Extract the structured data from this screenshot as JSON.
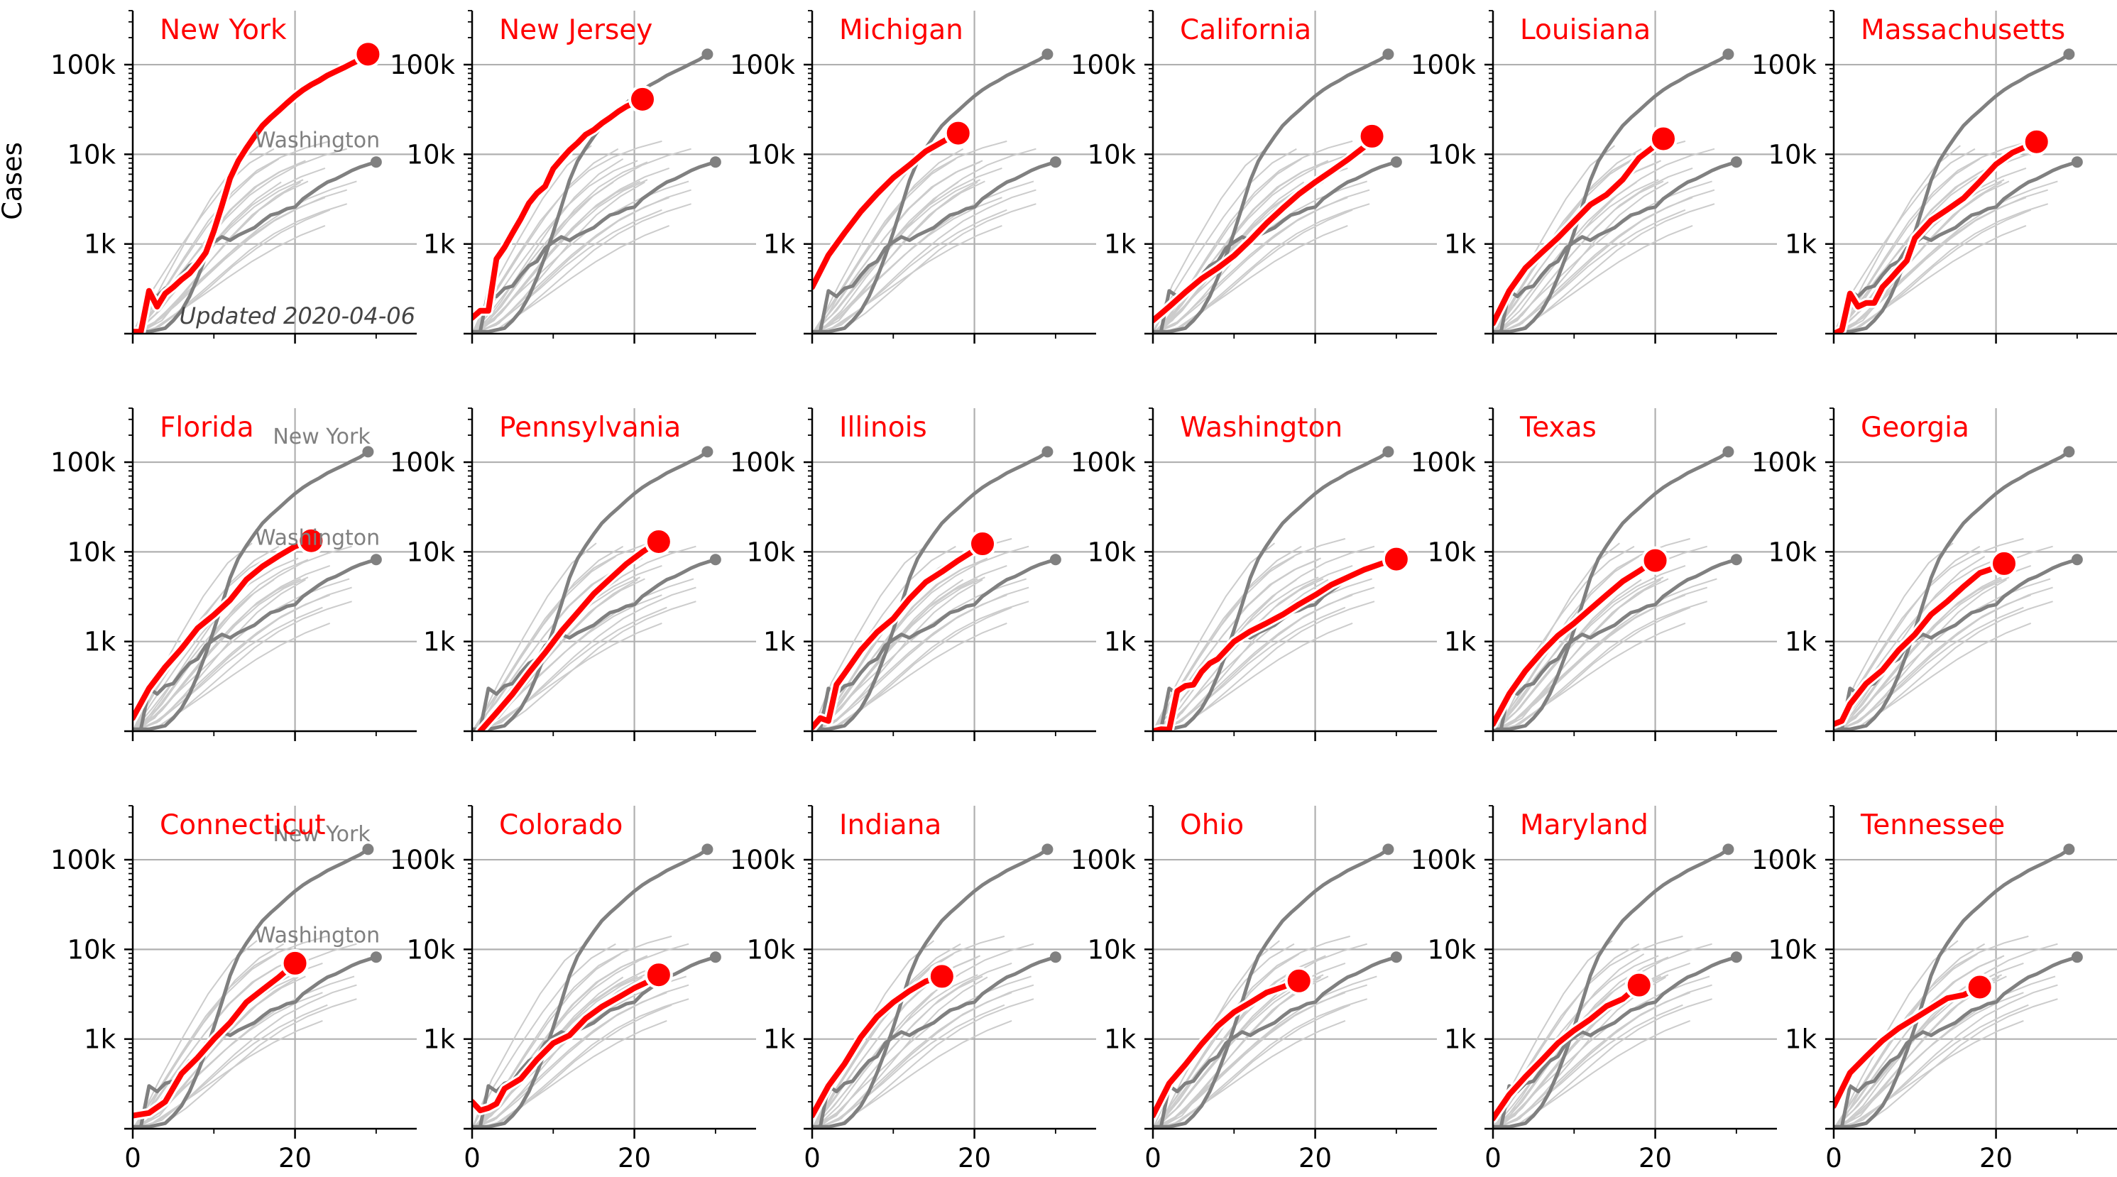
{
  "figure": {
    "ylabel": "Cases",
    "updated_note": "Updated 2020-04-06",
    "x_ticks": [
      "0",
      "20"
    ],
    "y_ticks": [
      "1k",
      "10k",
      "100k"
    ],
    "ref_labels": {
      "ny": "New York",
      "wa": "Washington"
    }
  },
  "colors": {
    "highlight": "#ff0000",
    "reference": "#808080",
    "background_lines": "#cccccc",
    "grid": "#b0b0b0",
    "axis": "#000000"
  },
  "chart_data": {
    "type": "line",
    "xlim": [
      0,
      35
    ],
    "ylim": [
      100,
      400000
    ],
    "yscale": "log",
    "xlabel": "",
    "ylabel": "Cases",
    "grid": true,
    "reference_series": [
      {
        "name": "New York",
        "x": [
          0,
          1,
          2,
          3,
          4,
          5,
          6,
          7,
          8,
          9,
          10,
          11,
          12,
          13,
          14,
          15,
          16,
          17,
          18,
          19,
          20,
          21,
          22,
          23,
          24,
          25,
          26,
          27,
          28,
          29
        ],
        "y": [
          105,
          105,
          105,
          110,
          115,
          140,
          180,
          260,
          420,
          730,
          1350,
          2600,
          5100,
          8400,
          11700,
          15800,
          20900,
          25600,
          30800,
          37200,
          44600,
          52300,
          59600,
          66700,
          75800,
          83700,
          92400,
          102900,
          113700,
          130700
        ]
      },
      {
        "name": "Washington",
        "x": [
          0,
          1,
          2,
          3,
          4,
          5,
          6,
          7,
          8,
          9,
          10,
          11,
          12,
          13,
          14,
          15,
          16,
          17,
          18,
          19,
          20,
          21,
          22,
          23,
          24,
          25,
          26,
          27,
          28,
          29,
          30
        ],
        "y": [
          100,
          105,
          300,
          260,
          320,
          340,
          450,
          570,
          640,
          900,
          1050,
          1200,
          1100,
          1250,
          1380,
          1520,
          1800,
          2100,
          2220,
          2470,
          2580,
          3200,
          3700,
          4300,
          4900,
          5300,
          5900,
          6600,
          7200,
          7700,
          8200
        ]
      }
    ],
    "background_series": [
      {
        "x": [
          0,
          3,
          6,
          9,
          12,
          15,
          18,
          21,
          24,
          27
        ],
        "y": [
          100,
          180,
          420,
          900,
          1900,
          3500,
          5400,
          7600,
          9600,
          11500
        ]
      },
      {
        "x": [
          0,
          3,
          6,
          9,
          12,
          15,
          18,
          21,
          24
        ],
        "y": [
          100,
          260,
          700,
          1800,
          3800,
          6600,
          9300,
          11800,
          14000
        ]
      },
      {
        "x": [
          0,
          3,
          6,
          9,
          12,
          15,
          18,
          21
        ],
        "y": [
          100,
          130,
          250,
          520,
          1100,
          2100,
          3400,
          4900
        ]
      },
      {
        "x": [
          0,
          3,
          6,
          9,
          12,
          15,
          18,
          21,
          24,
          27
        ],
        "y": [
          100,
          150,
          280,
          500,
          900,
          1500,
          2300,
          3200,
          4100,
          5000
        ]
      },
      {
        "x": [
          0,
          3,
          6,
          9,
          12,
          15,
          18,
          21
        ],
        "y": [
          100,
          200,
          480,
          1100,
          2400,
          4300,
          6300,
          8200
        ]
      },
      {
        "x": [
          0,
          3,
          6,
          9,
          12,
          15,
          18
        ],
        "y": [
          100,
          300,
          800,
          2000,
          4500,
          8000,
          11500
        ]
      },
      {
        "x": [
          0,
          3,
          6,
          9,
          12,
          15,
          18,
          21,
          24
        ],
        "y": [
          100,
          120,
          190,
          320,
          560,
          900,
          1350,
          1850,
          2400
        ]
      },
      {
        "x": [
          0,
          3,
          6,
          9,
          12,
          15,
          18,
          21,
          24
        ],
        "y": [
          100,
          160,
          350,
          750,
          1500,
          2700,
          4100,
          5600,
          7000
        ]
      },
      {
        "x": [
          0,
          3,
          6,
          9,
          12,
          15,
          18,
          21
        ],
        "y": [
          100,
          140,
          300,
          650,
          1300,
          2400,
          3700,
          5000
        ]
      },
      {
        "x": [
          0,
          3,
          6,
          9,
          12,
          15,
          18
        ],
        "y": [
          100,
          230,
          600,
          1500,
          3300,
          6000,
          8900
        ]
      },
      {
        "x": [
          0,
          3,
          6,
          9,
          12,
          15,
          18,
          21,
          24,
          27
        ],
        "y": [
          100,
          110,
          170,
          290,
          500,
          850,
          1300,
          1800,
          2300,
          2800
        ]
      },
      {
        "x": [
          0,
          3,
          6,
          9,
          12,
          15,
          18,
          21
        ],
        "y": [
          100,
          210,
          520,
          1200,
          2500,
          4400,
          6500,
          8500
        ]
      },
      {
        "x": [
          0,
          3,
          6,
          9,
          12,
          15,
          18,
          21,
          24
        ],
        "y": [
          100,
          135,
          240,
          430,
          760,
          1250,
          1900,
          2600,
          3300
        ]
      },
      {
        "x": [
          0,
          3,
          6,
          9,
          12,
          15
        ],
        "y": [
          100,
          350,
          1100,
          3200,
          7500,
          12500
        ]
      },
      {
        "x": [
          0,
          3,
          6,
          9,
          12,
          15,
          18,
          21
        ],
        "y": [
          100,
          170,
          360,
          760,
          1500,
          2600,
          3900,
          5200
        ]
      },
      {
        "x": [
          0,
          3,
          6,
          9,
          12,
          15,
          18,
          21,
          24,
          27
        ],
        "y": [
          100,
          125,
          210,
          380,
          680,
          1150,
          1800,
          2500,
          3300,
          4000
        ]
      },
      {
        "x": [
          0,
          3,
          6,
          9,
          12,
          15,
          18
        ],
        "y": [
          100,
          180,
          400,
          880,
          1800,
          3200,
          4900
        ]
      },
      {
        "x": [
          0,
          3,
          6,
          9,
          12,
          15,
          18,
          21,
          24
        ],
        "y": [
          100,
          115,
          175,
          270,
          420,
          640,
          920,
          1250,
          1600
        ]
      }
    ],
    "panels": [
      {
        "name": "New York",
        "show_ylabel": true,
        "show_updated": true,
        "labels": [
          "wa"
        ],
        "x": [
          0,
          1,
          2,
          3,
          4,
          5,
          6,
          7,
          8,
          9,
          10,
          11,
          12,
          13,
          14,
          15,
          16,
          17,
          18,
          19,
          20,
          21,
          22,
          23,
          24,
          25,
          26,
          27,
          28,
          29
        ],
        "y": [
          105,
          105,
          300,
          200,
          280,
          330,
          400,
          470,
          600,
          800,
          1400,
          2700,
          5400,
          8400,
          11700,
          15800,
          20900,
          25600,
          30800,
          37200,
          44600,
          52300,
          59600,
          66700,
          75800,
          83700,
          92400,
          102900,
          113700,
          130700
        ]
      },
      {
        "name": "New Jersey",
        "x": [
          0,
          1,
          2,
          3,
          4,
          5,
          6,
          7,
          8,
          9,
          10,
          11,
          12,
          13,
          14,
          15,
          16,
          17,
          18,
          19,
          20,
          21
        ],
        "y": [
          150,
          180,
          180,
          680,
          920,
          1330,
          1910,
          2840,
          3680,
          4400,
          6900,
          8800,
          11100,
          13400,
          16600,
          18700,
          22200,
          25600,
          29900,
          34100,
          37500,
          41100
        ]
      },
      {
        "name": "Michigan",
        "x": [
          0,
          2,
          4,
          6,
          8,
          10,
          12,
          14,
          16,
          18
        ],
        "y": [
          330,
          750,
          1330,
          2300,
          3630,
          5490,
          7600,
          10800,
          13700,
          17200
        ]
      },
      {
        "name": "California",
        "x": [
          0,
          2,
          4,
          6,
          8,
          10,
          12,
          14,
          16,
          18,
          20,
          22,
          24,
          26,
          27
        ],
        "y": [
          140,
          200,
          290,
          410,
          540,
          740,
          1100,
          1700,
          2500,
          3600,
          4900,
          6500,
          8700,
          12000,
          15900
        ]
      },
      {
        "name": "Louisiana",
        "x": [
          0,
          2,
          4,
          6,
          8,
          10,
          12,
          14,
          16,
          18,
          20,
          21
        ],
        "y": [
          130,
          300,
          540,
          800,
          1170,
          1790,
          2740,
          3540,
          5240,
          9100,
          12500,
          14900
        ]
      },
      {
        "name": "Massachusetts",
        "x": [
          0,
          1,
          2,
          3,
          4,
          5,
          6,
          7,
          8,
          9,
          10,
          12,
          14,
          16,
          18,
          20,
          22,
          24,
          25
        ],
        "y": [
          100,
          110,
          280,
          200,
          220,
          220,
          330,
          410,
          520,
          650,
          1160,
          1830,
          2420,
          3240,
          4950,
          7740,
          10400,
          12500,
          13800
        ]
      },
      {
        "name": "Florida",
        "labels": [
          "ny",
          "wa"
        ],
        "x": [
          0,
          2,
          4,
          6,
          8,
          10,
          12,
          14,
          16,
          18,
          20,
          22
        ],
        "y": [
          140,
          300,
          520,
          830,
          1410,
          1980,
          2900,
          4900,
          6900,
          9000,
          11500,
          13300
        ]
      },
      {
        "name": "Pennsylvania",
        "x": [
          1,
          3,
          5,
          7,
          9,
          11,
          13,
          15,
          17,
          19,
          21,
          23
        ],
        "y": [
          100,
          160,
          260,
          450,
          750,
          1300,
          2100,
          3400,
          5000,
          7300,
          10000,
          13000
        ]
      },
      {
        "name": "Illinois",
        "x": [
          0,
          1,
          2,
          3,
          4,
          6,
          8,
          10,
          12,
          14,
          16,
          18,
          20,
          21
        ],
        "y": [
          110,
          140,
          130,
          330,
          440,
          800,
          1270,
          1800,
          3000,
          4600,
          6000,
          8000,
          10400,
          12300
        ]
      },
      {
        "name": "Washington",
        "x": [
          0,
          1,
          2,
          3,
          4,
          5,
          6,
          7,
          8,
          10,
          12,
          14,
          16,
          18,
          20,
          22,
          24,
          26,
          28,
          30
        ],
        "y": [
          100,
          105,
          104,
          280,
          320,
          330,
          460,
          570,
          640,
          1000,
          1300,
          1600,
          2000,
          2600,
          3300,
          4300,
          5200,
          6300,
          7300,
          8300
        ]
      },
      {
        "name": "Texas",
        "x": [
          0,
          2,
          4,
          6,
          8,
          10,
          12,
          14,
          16,
          18,
          20
        ],
        "y": [
          120,
          260,
          470,
          760,
          1160,
          1600,
          2300,
          3300,
          4700,
          6100,
          8000
        ]
      },
      {
        "name": "Georgia",
        "x": [
          0,
          1,
          2,
          4,
          6,
          8,
          10,
          12,
          14,
          16,
          18,
          20,
          21
        ],
        "y": [
          120,
          130,
          200,
          340,
          480,
          800,
          1200,
          2000,
          2800,
          4100,
          5800,
          6700,
          7400
        ]
      },
      {
        "name": "Connecticut",
        "labels": [
          "ny",
          "wa"
        ],
        "x": [
          0,
          2,
          4,
          6,
          8,
          10,
          12,
          14,
          16,
          18,
          20
        ],
        "y": [
          140,
          150,
          200,
          410,
          620,
          1000,
          1520,
          2570,
          3560,
          4900,
          7000
        ]
      },
      {
        "name": "Colorado",
        "x": [
          0,
          1,
          2,
          3,
          4,
          6,
          8,
          10,
          12,
          14,
          16,
          18,
          20,
          22,
          23
        ],
        "y": [
          200,
          160,
          170,
          190,
          280,
          360,
          590,
          900,
          1100,
          1700,
          2300,
          2900,
          3700,
          4500,
          5200
        ]
      },
      {
        "name": "Indiana",
        "x": [
          0,
          2,
          4,
          6,
          8,
          10,
          12,
          14,
          16
        ],
        "y": [
          140,
          300,
          530,
          1050,
          1780,
          2570,
          3440,
          4400,
          5000
        ]
      },
      {
        "name": "Ohio",
        "x": [
          0,
          2,
          4,
          6,
          8,
          10,
          12,
          14,
          16,
          18
        ],
        "y": [
          140,
          320,
          520,
          880,
          1400,
          2000,
          2550,
          3300,
          3800,
          4450
        ]
      },
      {
        "name": "Maryland",
        "x": [
          0,
          2,
          4,
          6,
          8,
          10,
          12,
          14,
          16,
          18
        ],
        "y": [
          130,
          240,
          380,
          580,
          900,
          1250,
          1660,
          2330,
          2800,
          4000
        ]
      },
      {
        "name": "Tennessee",
        "x": [
          0,
          2,
          4,
          6,
          8,
          10,
          12,
          14,
          16,
          18
        ],
        "y": [
          180,
          420,
          640,
          960,
          1320,
          1700,
          2200,
          2850,
          3100,
          3800
        ]
      }
    ]
  }
}
